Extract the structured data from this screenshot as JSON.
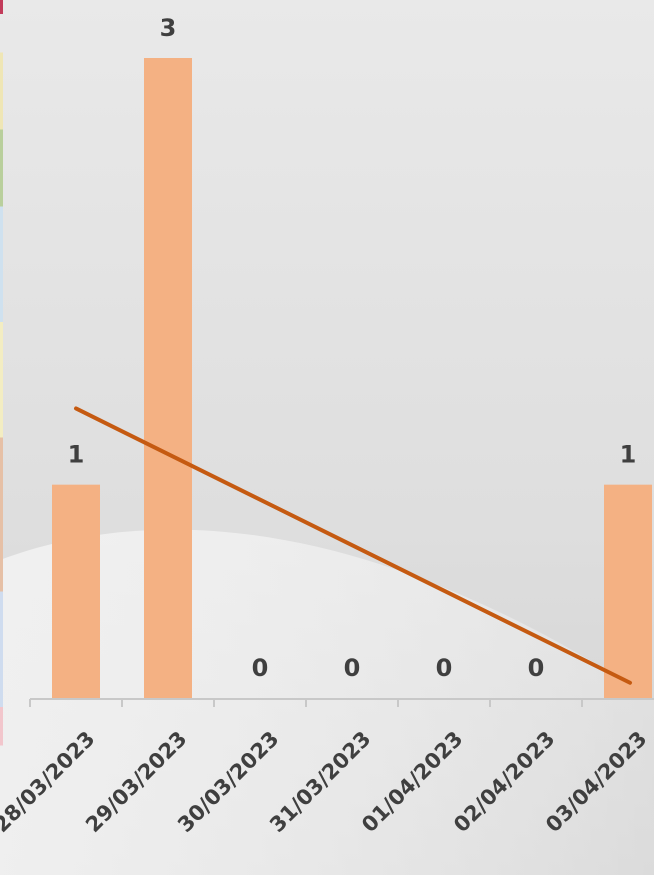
{
  "chart_data": {
    "type": "bar",
    "categories": [
      "28/03/2023",
      "29/03/2023",
      "30/03/2023",
      "31/03/2023",
      "01/04/2023",
      "02/04/2023",
      "03/04/2023"
    ],
    "series": [
      {
        "values": [
          1,
          3,
          0,
          0,
          0,
          0,
          1
        ],
        "color": "#f4b183"
      }
    ],
    "data_labels": [
      "1",
      "3",
      "0",
      "0",
      "0",
      "0",
      "1"
    ],
    "trendline": {
      "type": "linear",
      "color": "#c55a11"
    },
    "title": "",
    "xlabel": "",
    "ylabel": "",
    "ylim": [
      0,
      3
    ],
    "grid": false,
    "legend": "none"
  }
}
